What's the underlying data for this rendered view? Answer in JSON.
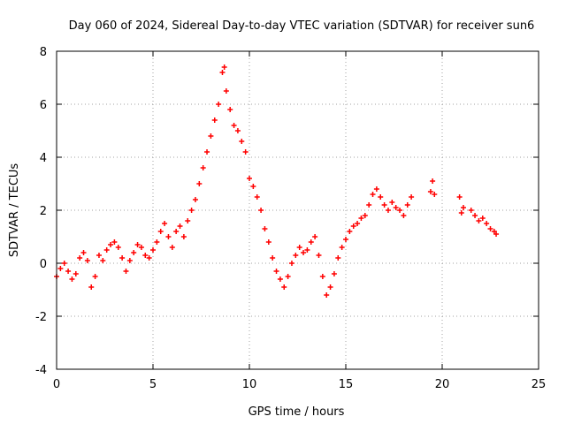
{
  "chart_data": {
    "type": "scatter",
    "title": "Day 060 of 2024, Sidereal Day-to-day VTEC variation (SDTVAR) for receiver sun6",
    "xlabel": "GPS time / hours",
    "ylabel": "SDTVAR / TECUs",
    "xlim": [
      0,
      25
    ],
    "ylim": [
      -4,
      8
    ],
    "xticks": [
      "0",
      "5",
      "10",
      "15",
      "20",
      "25"
    ],
    "yticks": [
      "-4",
      "-2",
      "0",
      "2",
      "4",
      "6",
      "8"
    ],
    "grid": true,
    "marker": "+",
    "series": [
      {
        "name": "sun6",
        "color": "#ff0000",
        "x": [
          0.0,
          0.2,
          0.4,
          0.6,
          0.8,
          1.0,
          1.2,
          1.4,
          1.6,
          1.8,
          2.0,
          2.2,
          2.4,
          2.6,
          2.8,
          3.0,
          3.2,
          3.4,
          3.6,
          3.8,
          4.0,
          4.2,
          4.4,
          4.6,
          4.8,
          5.0,
          5.2,
          5.4,
          5.6,
          5.8,
          6.0,
          6.2,
          6.4,
          6.6,
          6.8,
          7.0,
          7.2,
          7.4,
          7.6,
          7.8,
          8.0,
          8.2,
          8.4,
          8.6,
          8.7,
          8.8,
          9.0,
          9.2,
          9.4,
          9.6,
          9.8,
          10.0,
          10.2,
          10.4,
          10.6,
          10.8,
          11.0,
          11.2,
          11.4,
          11.6,
          11.8,
          12.0,
          12.2,
          12.4,
          12.6,
          12.8,
          13.0,
          13.2,
          13.4,
          13.6,
          13.8,
          14.0,
          14.2,
          14.4,
          14.6,
          14.8,
          15.0,
          15.2,
          15.4,
          15.6,
          15.8,
          16.0,
          16.2,
          16.4,
          16.6,
          16.8,
          17.0,
          17.2,
          17.4,
          17.6,
          17.8,
          18.0,
          18.2,
          18.4,
          19.4,
          19.5,
          19.6,
          20.9,
          21.0,
          21.1,
          21.5,
          21.7,
          21.9,
          22.1,
          22.3,
          22.5,
          22.7,
          22.8
        ],
        "y": [
          -0.5,
          -0.2,
          0.0,
          -0.3,
          -0.6,
          -0.4,
          0.2,
          0.4,
          0.1,
          -0.9,
          -0.5,
          0.3,
          0.1,
          0.5,
          0.7,
          0.8,
          0.6,
          0.2,
          -0.3,
          0.1,
          0.4,
          0.7,
          0.6,
          0.3,
          0.2,
          0.5,
          0.8,
          1.2,
          1.5,
          1.0,
          0.6,
          1.2,
          1.4,
          1.0,
          1.6,
          2.0,
          2.4,
          3.0,
          3.6,
          4.2,
          4.8,
          5.4,
          6.0,
          7.2,
          7.4,
          6.5,
          5.8,
          5.2,
          5.0,
          4.6,
          4.2,
          3.2,
          2.9,
          2.5,
          2.0,
          1.3,
          0.8,
          0.2,
          -0.3,
          -0.6,
          -0.9,
          -0.5,
          0.0,
          0.3,
          0.6,
          0.4,
          0.5,
          0.8,
          1.0,
          0.3,
          -0.5,
          -1.2,
          -0.9,
          -0.4,
          0.2,
          0.6,
          0.9,
          1.2,
          1.4,
          1.5,
          1.7,
          1.8,
          2.2,
          2.6,
          2.8,
          2.5,
          2.2,
          2.0,
          2.3,
          2.1,
          2.0,
          1.8,
          2.2,
          2.5,
          2.7,
          3.1,
          2.6,
          2.5,
          1.9,
          2.1,
          2.0,
          1.8,
          1.6,
          1.7,
          1.5,
          1.3,
          1.2,
          1.1
        ]
      }
    ]
  }
}
